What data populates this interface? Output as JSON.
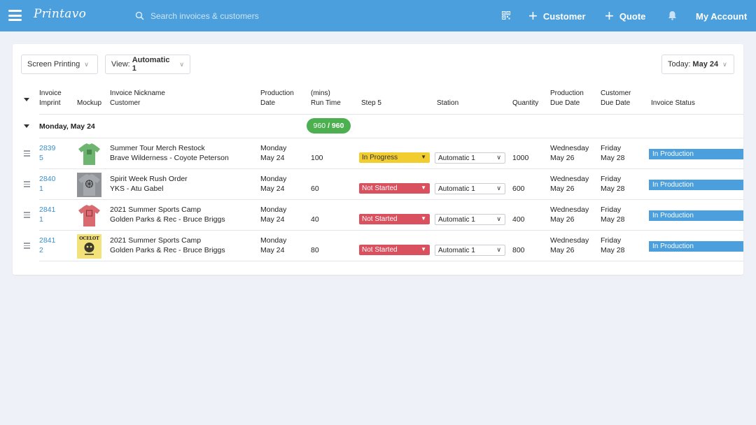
{
  "nav": {
    "logo": "Printavo",
    "search_placeholder": "Search invoices & customers",
    "customer_label": "Customer",
    "quote_label": "Quote",
    "account_label": "My Account"
  },
  "filters": {
    "category": "Screen Printing",
    "view_prefix": "View:",
    "view_value": "Automatic 1",
    "today_prefix": "Today:",
    "today_value": "May 24"
  },
  "columns": {
    "invoice_l1": "Invoice",
    "invoice_l2": "Imprint",
    "mockup": "Mockup",
    "nickname": "Invoice Nickname",
    "customer": "Customer",
    "prod_date_l1": "Production",
    "prod_date_l2": "Date",
    "run_time_l1": "(mins)",
    "run_time_l2": "Run Time",
    "step": "Step 5",
    "station": "Station",
    "quantity": "Quantity",
    "prod_due_l1": "Production",
    "prod_due_l2": "Due Date",
    "cust_due_l1": "Customer",
    "cust_due_l2": "Due Date",
    "status": "Invoice Status"
  },
  "group": {
    "label": "Monday, May 24",
    "capacity_used": "960",
    "capacity_sep": "/",
    "capacity_total": "960",
    "capacity_color": "#4caf50"
  },
  "rows": [
    {
      "invoice_l1": "2839",
      "invoice_l2": "5",
      "mockup_color": "#6fb572",
      "nickname": "Summer Tour Merch Restock",
      "customer": "Brave Wilderness - Coyote Peterson",
      "prod_day": "Monday",
      "prod_date": "May 24",
      "run_time": "100",
      "step": "In Progress",
      "step_color": "#f2cd2f",
      "station": "Automatic 1",
      "quantity": "1000",
      "due_day": "Wednesday",
      "due_date": "May 26",
      "cust_day": "Friday",
      "cust_date": "May 28",
      "status": "In Production"
    },
    {
      "invoice_l1": "2840",
      "invoice_l2": "1",
      "mockup_color": "#8f9296",
      "nickname": "Spirit Week Rush Order",
      "customer": "YKS - Atu Gabel",
      "prod_day": "Monday",
      "prod_date": "May 24",
      "run_time": "60",
      "step": "Not Started",
      "step_color": "#d9505e",
      "station": "Automatic 1",
      "quantity": "600",
      "due_day": "Wednesday",
      "due_date": "May 26",
      "cust_day": "Friday",
      "cust_date": "May 28",
      "status": "In Production"
    },
    {
      "invoice_l1": "2841",
      "invoice_l2": "1",
      "mockup_color": "#d96a6f",
      "nickname": "2021 Summer Sports Camp",
      "customer": "Golden Parks & Rec - Bruce Briggs",
      "prod_day": "Monday",
      "prod_date": "May 24",
      "run_time": "40",
      "step": "Not Started",
      "step_color": "#d9505e",
      "station": "Automatic 1",
      "quantity": "400",
      "due_day": "Wednesday",
      "due_date": "May 26",
      "cust_day": "Friday",
      "cust_date": "May 28",
      "status": "In Production"
    },
    {
      "invoice_l1": "2841",
      "invoice_l2": "2",
      "mockup_color": "#f3e27a",
      "mockup_text": "OCELOT",
      "nickname": "2021 Summer Sports Camp",
      "customer": "Golden Parks & Rec - Bruce Briggs",
      "prod_day": "Monday",
      "prod_date": "May 24",
      "run_time": "80",
      "step": "Not Started",
      "step_color": "#d9505e",
      "station": "Automatic 1",
      "quantity": "800",
      "due_day": "Wednesday",
      "due_date": "May 26",
      "cust_day": "Friday",
      "cust_date": "May 28",
      "status": "In Production"
    }
  ],
  "colors": {
    "nav_bg": "#4a9fdc",
    "status_bg": "#4a9fdc",
    "link": "#3a8fd0",
    "page_bg": "#eef1f7"
  }
}
